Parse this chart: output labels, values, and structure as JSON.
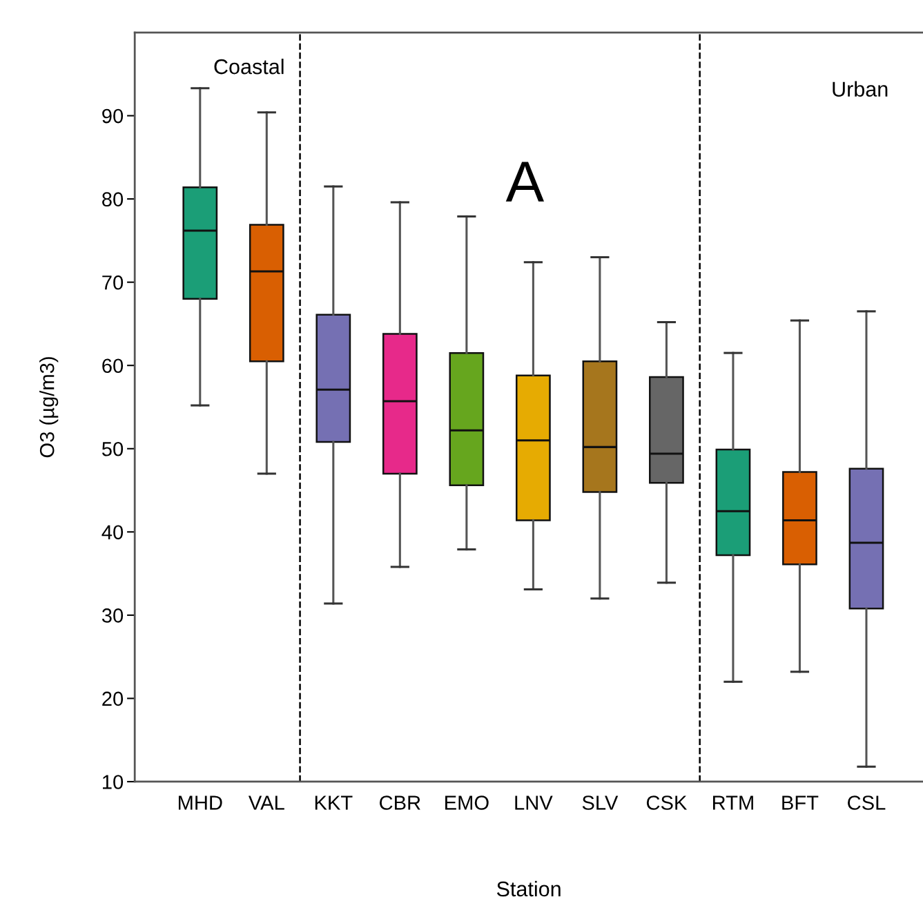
{
  "chart_data": {
    "type": "box",
    "xlabel": "Station",
    "ylabel": "O3 (µg/m3)",
    "categories": [
      "MHD",
      "VAL",
      "KKT",
      "CBR",
      "EMO",
      "LNV",
      "SLV",
      "CSK",
      "RTM",
      "BFT",
      "CSL"
    ],
    "colors": [
      "#1b9e77",
      "#d95f02",
      "#7570b3",
      "#e7298a",
      "#66a61e",
      "#e6ab02",
      "#a6761d",
      "#666666",
      "#1b9e77",
      "#d95f02",
      "#7570b3"
    ],
    "boxes": [
      {
        "low": 55.2,
        "q1": 68.0,
        "median": 76.2,
        "q3": 81.4,
        "high": 93.3
      },
      {
        "low": 47.0,
        "q1": 60.5,
        "median": 71.3,
        "q3": 76.9,
        "high": 90.4
      },
      {
        "low": 31.4,
        "q1": 50.8,
        "median": 57.1,
        "q3": 66.1,
        "high": 81.5
      },
      {
        "low": 35.8,
        "q1": 47.0,
        "median": 55.7,
        "q3": 63.8,
        "high": 79.6
      },
      {
        "low": 37.9,
        "q1": 45.6,
        "median": 52.2,
        "q3": 61.5,
        "high": 77.9
      },
      {
        "low": 33.1,
        "q1": 41.4,
        "median": 51.0,
        "q3": 58.8,
        "high": 72.4
      },
      {
        "low": 32.0,
        "q1": 44.8,
        "median": 50.2,
        "q3": 60.5,
        "high": 73.0
      },
      {
        "low": 33.9,
        "q1": 45.9,
        "median": 49.4,
        "q3": 58.6,
        "high": 65.2
      },
      {
        "low": 22.0,
        "q1": 37.2,
        "median": 42.5,
        "q3": 49.9,
        "high": 61.5
      },
      {
        "low": 23.2,
        "q1": 36.1,
        "median": 41.4,
        "q3": 47.2,
        "high": 65.4
      },
      {
        "low": 11.8,
        "q1": 30.8,
        "median": 38.7,
        "q3": 47.6,
        "high": 66.5
      }
    ],
    "ylim": [
      10,
      100
    ],
    "yticks": [
      10,
      20,
      30,
      40,
      50,
      60,
      70,
      80,
      90
    ],
    "annotations": [
      "Coastal",
      "A",
      "Urban"
    ],
    "grid": false
  }
}
